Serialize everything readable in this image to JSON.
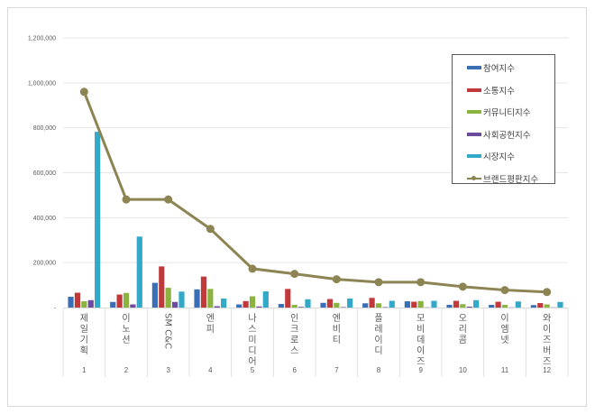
{
  "chart_data": {
    "type": "bar",
    "title": "",
    "xlabel": "",
    "ylabel": "",
    "ylim": [
      0,
      1200000
    ],
    "grid": true,
    "legend_position": "top-right",
    "y_ticks": [
      "-",
      "200,000",
      "400,000",
      "600,000",
      "800,000",
      "1,000,000",
      "1,200,000"
    ],
    "categories": [
      "제일기획",
      "이노션",
      "SM C&C",
      "엔피",
      "나스미디어",
      "인크로스",
      "엔비티",
      "플레이디",
      "모비데이즈",
      "오리콤",
      "이엠넷",
      "와이즈버즈"
    ],
    "ranks": [
      "1",
      "2",
      "3",
      "4",
      "5",
      "6",
      "7",
      "8",
      "9",
      "10",
      "11",
      "12"
    ],
    "series": [
      {
        "name": "참여지수",
        "type": "bar",
        "color": "#3a6fb5",
        "values": [
          48000,
          25000,
          110000,
          81000,
          14000,
          16000,
          21000,
          19000,
          28000,
          12000,
          12000,
          11000
        ]
      },
      {
        "name": "소통지수",
        "type": "bar",
        "color": "#c0393b",
        "values": [
          66000,
          58000,
          183000,
          138000,
          29000,
          83000,
          38000,
          43000,
          26000,
          30000,
          26000,
          20000
        ]
      },
      {
        "name": "커뮤니티지수",
        "type": "bar",
        "color": "#8bb33f",
        "values": [
          28000,
          65000,
          88000,
          83000,
          50000,
          12000,
          21000,
          19000,
          29000,
          15000,
          12000,
          14000
        ]
      },
      {
        "name": "사회공헌지수",
        "type": "bar",
        "color": "#6c4a9e",
        "values": [
          33000,
          14000,
          25000,
          6000,
          5000,
          3000,
          2000,
          2000,
          1000,
          4000,
          1000,
          1000
        ]
      },
      {
        "name": "시장지수",
        "type": "bar",
        "color": "#33a9c9",
        "values": [
          782000,
          316000,
          71000,
          40000,
          72000,
          37000,
          40000,
          30000,
          30000,
          33000,
          27000,
          25000
        ]
      },
      {
        "name": "브랜드평판지수",
        "type": "line",
        "color": "#8c8453",
        "values": [
          960000,
          481000,
          481000,
          350000,
          173000,
          150000,
          126000,
          113000,
          113000,
          93000,
          78000,
          69000
        ]
      }
    ]
  }
}
